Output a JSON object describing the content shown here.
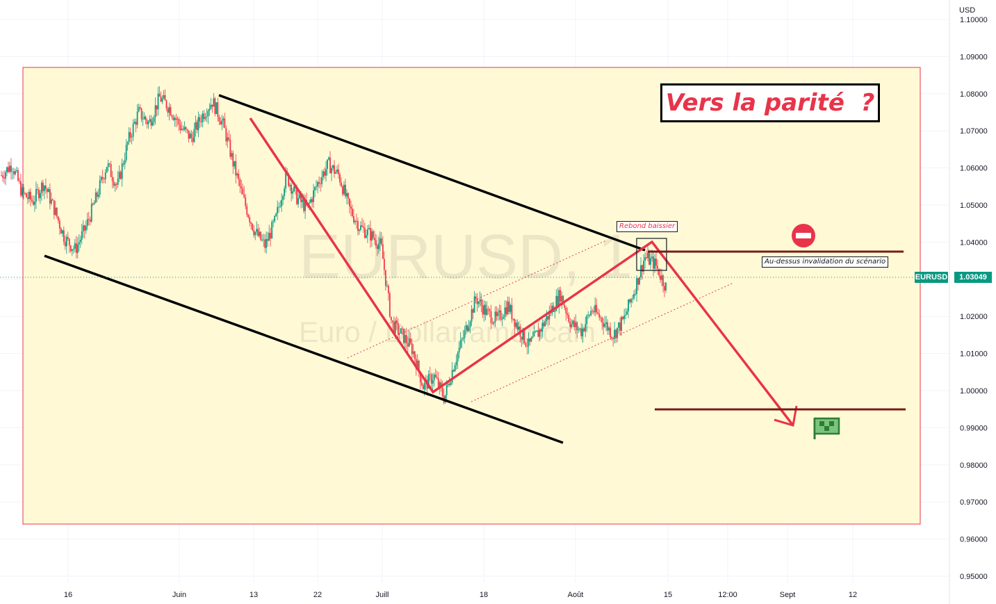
{
  "axis": {
    "currency": "USD",
    "y_ticks": [
      "1.10000",
      "1.09000",
      "1.08000",
      "1.07000",
      "1.06000",
      "1.05000",
      "1.04000",
      "1.03000",
      "1.02000",
      "1.01000",
      "1.00000",
      "0.99000",
      "0.98000",
      "0.97000",
      "0.96000",
      "0.95000"
    ],
    "x_ticks": [
      "16",
      "Juin",
      "13",
      "22",
      "Juill",
      "18",
      "Août",
      "15",
      "12:00",
      "Sept",
      "12"
    ]
  },
  "watermark": {
    "symbol": "EURUSD, 1",
    "name": "Euro / Dollar américain"
  },
  "annotations": {
    "title": "Vers la parité  ?",
    "rebound_label": "Rebond baissier",
    "invalidation_label": "Au-dessus invalidation du scénario"
  },
  "price_tag": {
    "symbol": "EURUSD",
    "value": "1.03049"
  },
  "colors": {
    "up": "#089981",
    "down": "#f23645",
    "zone_fill": "#fff9d6",
    "zone_border": "#e8344a",
    "projection": "#e8344a",
    "level": "#7a1a1a"
  },
  "chart_data": {
    "type": "line",
    "title": "",
    "ylabel": "USD",
    "xlabel": "",
    "ylim": [
      0.945,
      1.105
    ],
    "timeframe": "1H",
    "series": [
      {
        "values": [
          1.058,
          1.061,
          1.053,
          1.051,
          1.056,
          1.049,
          1.041,
          1.038,
          1.044,
          1.052,
          1.061,
          1.055,
          1.067,
          1.075,
          1.072,
          1.079,
          1.076,
          1.071,
          1.068,
          1.074,
          1.078,
          1.072,
          1.061,
          1.051,
          1.043,
          1.039,
          1.046,
          1.058,
          1.052,
          1.049,
          1.056,
          1.061,
          1.058,
          1.049,
          1.044,
          1.042,
          1.039,
          1.018,
          1.015,
          1.011,
          1.001,
          1.004,
          0.998,
          1.008,
          1.016,
          1.025,
          1.021,
          1.019,
          1.023,
          1.017,
          1.012,
          1.016,
          1.021,
          1.026,
          1.018,
          1.016,
          1.022,
          1.019,
          1.015,
          1.019,
          1.027,
          1.036,
          1.034,
          1.028
        ]
      }
    ],
    "price_scale": {
      "last_price": 1.03049,
      "invalidation_level": 1.0375,
      "target_level": 0.9948
    }
  }
}
